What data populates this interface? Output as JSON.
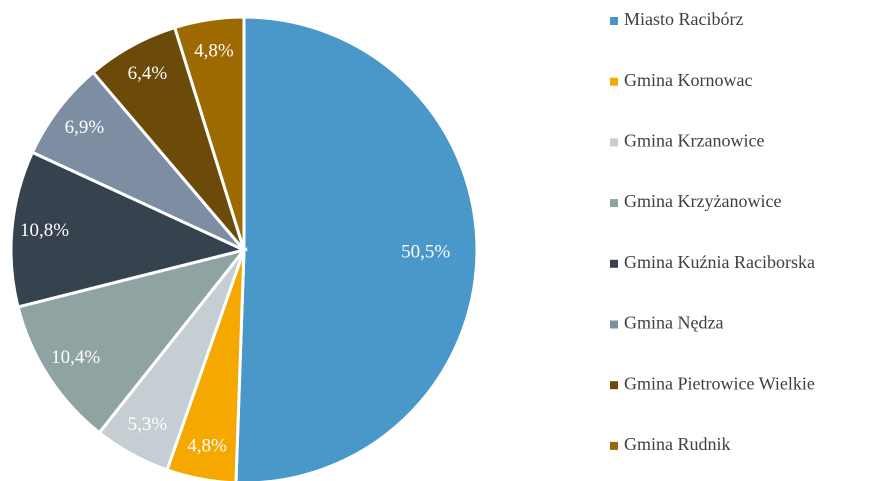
{
  "chart_data": {
    "type": "pie",
    "categories": [
      "Miasto Racibórz",
      "Gmina Kornowac",
      "Gmina Krzanowice",
      "Gmina Krzyżanowice",
      "Gmina Kuźnia Raciborska",
      "Gmina Nędza",
      "Gmina Pietrowice Wielkie",
      "Gmina Rudnik"
    ],
    "values": [
      50.5,
      4.8,
      5.3,
      10.4,
      10.8,
      6.9,
      6.4,
      4.8
    ],
    "value_labels": [
      "50,5%",
      "4,8%",
      "5,3%",
      "10,4%",
      "10,8%",
      "6,9%",
      "6,4%",
      "4,8%"
    ],
    "colors": [
      "#4a98c9",
      "#f5a800",
      "#c5cfd3",
      "#8fa3a3",
      "#37424f",
      "#7d8ea3",
      "#6b4a0a",
      "#9c6a00"
    ],
    "legend": "right"
  }
}
